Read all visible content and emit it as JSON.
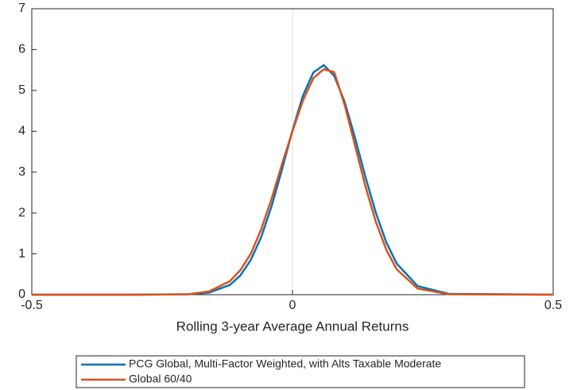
{
  "chart_data": {
    "type": "line",
    "x_label": "Rolling 3-year Average Annual Returns",
    "x": [
      -0.5,
      -0.3,
      -0.2,
      -0.16,
      -0.12,
      -0.1,
      -0.08,
      -0.06,
      -0.04,
      -0.02,
      0,
      0.02,
      0.04,
      0.06,
      0.08,
      0.1,
      0.12,
      0.14,
      0.16,
      0.18,
      0.2,
      0.24,
      0.3,
      0.5
    ],
    "series": [
      {
        "name": "PCG Global, Multi-Factor Weighted, with Alts Taxable Moderate",
        "color": "#0072bd",
        "values": [
          0,
          0,
          0.01,
          0.05,
          0.24,
          0.47,
          0.85,
          1.41,
          2.17,
          3.07,
          4.02,
          4.87,
          5.44,
          5.62,
          5.36,
          4.72,
          3.84,
          2.88,
          2.0,
          1.28,
          0.76,
          0.21,
          0.02,
          0
        ]
      },
      {
        "name": "Global 60/40",
        "color": "#d95319",
        "values": [
          0,
          0,
          0.01,
          0.08,
          0.33,
          0.6,
          1.0,
          1.6,
          2.35,
          3.2,
          4.0,
          4.75,
          5.3,
          5.52,
          5.45,
          4.65,
          3.65,
          2.65,
          1.78,
          1.1,
          0.62,
          0.15,
          0.01,
          0
        ]
      }
    ],
    "xlim": [
      -0.5,
      0.5
    ],
    "xticks": [
      -0.5,
      0,
      0.5
    ],
    "ylim": [
      0,
      7
    ],
    "yticks": [
      0,
      1,
      2,
      3,
      4,
      5,
      6,
      7
    ],
    "xgrid": true,
    "legend": "bottom"
  }
}
